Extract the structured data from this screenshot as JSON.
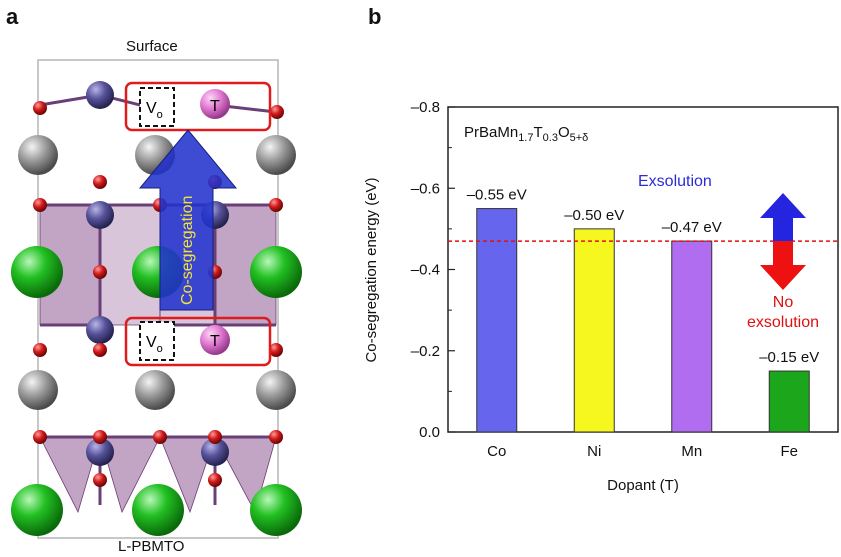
{
  "panel_a": {
    "letter": "a",
    "top_label": "Surface",
    "bottom_label": "L-PBMTO",
    "vacancy_label": "V",
    "vacancy_sub": "o",
    "dopant_label": "T",
    "arrow_text": "Co-segregation",
    "colors": {
      "pr_ba_large": "#1fae1f",
      "gray_atom": "#8c8c8c",
      "mn_atom": "#54508f",
      "oxygen": "#c41414",
      "dopant_atom": "#e07ad0",
      "polyhedron": "#8f5a93",
      "highlight_box": "#e01b1b",
      "arrow": "#2233cc",
      "arrow_text": "#f2e23a"
    }
  },
  "panel_b": {
    "letter": "b",
    "formula": {
      "base": "PrBaMn",
      "s1": "1.7",
      "t": "T",
      "s2": "0.3",
      "o": "O",
      "s3": "5+δ"
    },
    "exsolution_label": "Exsolution",
    "no_label_line1": "No",
    "no_label_line2": "exsolution",
    "colors": {
      "exsolution_text": "#2b2bd8",
      "no_exsolution_text": "#e01010",
      "threshold_line": "#e01010",
      "up_arrow": "#2525e0",
      "down_arrow": "#ee1111"
    }
  },
  "chart_data": {
    "type": "bar",
    "categories": [
      "Co",
      "Ni",
      "Mn",
      "Fe"
    ],
    "values": [
      0.55,
      0.5,
      0.47,
      0.15
    ],
    "bar_labels": [
      "–0.55 eV",
      "–0.50 eV",
      "–0.47 eV",
      "–0.15 eV"
    ],
    "bar_colors": [
      "#6565ee",
      "#f7f720",
      "#b16df0",
      "#1ca61c"
    ],
    "xlabel": "Dopant (T)",
    "ylabel": "Co-segregation energy (eV)",
    "ylim": [
      0,
      0.8
    ],
    "yticks": [
      0,
      0.2,
      0.4,
      0.6,
      0.8
    ],
    "ytick_labels": [
      "0.0",
      "–0.2",
      "–0.4",
      "–0.6",
      "–0.8"
    ],
    "threshold": 0.47,
    "y_axis_inverted_sign": true
  }
}
